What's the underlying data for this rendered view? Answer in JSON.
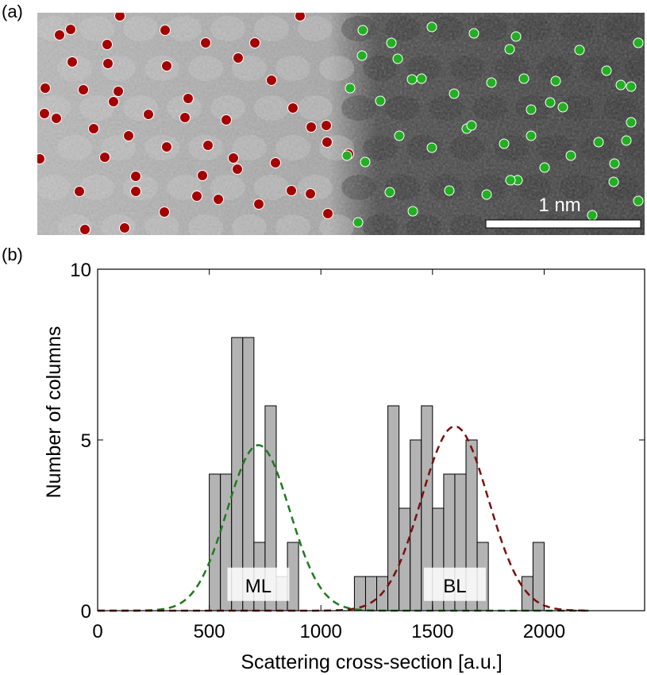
{
  "panel_a": {
    "label": "(a)",
    "scale_bar_label": "1 nm",
    "colors": {
      "red_dot": "#a40000",
      "green_dot": "#22b022"
    }
  },
  "panel_b": {
    "label": "(b)"
  },
  "chart_data": {
    "type": "bar",
    "title": "",
    "xlabel": "Scattering cross-section [a.u.]",
    "ylabel": "Number of columns",
    "xlim": [
      0,
      2450
    ],
    "ylim": [
      0,
      10
    ],
    "xticks": [
      0,
      500,
      1000,
      1500,
      2000
    ],
    "yticks": [
      0,
      5,
      10
    ],
    "bin_width": 50,
    "bins": [
      {
        "x0": 500,
        "count": 4
      },
      {
        "x0": 550,
        "count": 4
      },
      {
        "x0": 600,
        "count": 8
      },
      {
        "x0": 650,
        "count": 8
      },
      {
        "x0": 700,
        "count": 2
      },
      {
        "x0": 750,
        "count": 6
      },
      {
        "x0": 800,
        "count": 1
      },
      {
        "x0": 850,
        "count": 2
      },
      {
        "x0": 1150,
        "count": 1
      },
      {
        "x0": 1200,
        "count": 1
      },
      {
        "x0": 1250,
        "count": 1
      },
      {
        "x0": 1300,
        "count": 6
      },
      {
        "x0": 1350,
        "count": 3
      },
      {
        "x0": 1400,
        "count": 5
      },
      {
        "x0": 1450,
        "count": 6
      },
      {
        "x0": 1500,
        "count": 3
      },
      {
        "x0": 1550,
        "count": 4
      },
      {
        "x0": 1600,
        "count": 4
      },
      {
        "x0": 1650,
        "count": 5
      },
      {
        "x0": 1700,
        "count": 2
      },
      {
        "x0": 1900,
        "count": 1
      },
      {
        "x0": 1950,
        "count": 2
      }
    ],
    "fits": [
      {
        "label": "ML",
        "color": "#1f7a1f",
        "mean": 720,
        "sigma": 140,
        "peak": 4.85
      },
      {
        "label": "BL",
        "color": "#7a1010",
        "mean": 1600,
        "sigma": 150,
        "peak": 5.4
      }
    ],
    "annotations": [
      {
        "text": "ML",
        "x": 720,
        "y": 0.75
      },
      {
        "text": "BL",
        "x": 1600,
        "y": 0.75
      }
    ],
    "colors": {
      "bar_fill": "#b3b3b3",
      "bar_edge": "#000000"
    }
  }
}
